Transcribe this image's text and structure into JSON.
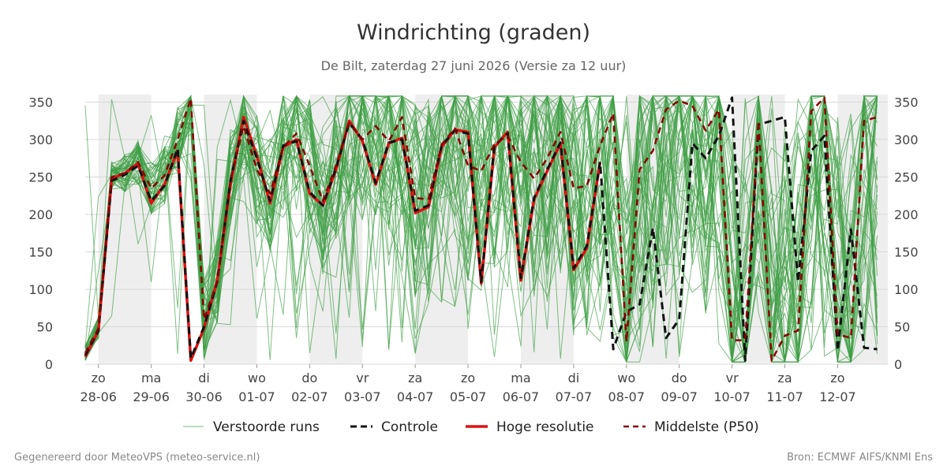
{
  "chart_data": {
    "type": "line",
    "title": "Windrichting (graden)",
    "subtitle": "De Bilt, zaterdag 27 juni 2026 (Versie za 12 uur)",
    "ylim": [
      0,
      360
    ],
    "yticks": [
      0,
      50,
      100,
      150,
      200,
      250,
      300,
      350
    ],
    "xlim": [
      -0.25,
      14.95
    ],
    "xticks": [
      {
        "day": "zo",
        "date": "28-06"
      },
      {
        "day": "ma",
        "date": "29-06"
      },
      {
        "day": "di",
        "date": "30-06"
      },
      {
        "day": "wo",
        "date": "01-07"
      },
      {
        "day": "do",
        "date": "02-07"
      },
      {
        "day": "vr",
        "date": "03-07"
      },
      {
        "day": "za",
        "date": "04-07"
      },
      {
        "day": "zo",
        "date": "05-07"
      },
      {
        "day": "ma",
        "date": "06-07"
      },
      {
        "day": "di",
        "date": "07-07"
      },
      {
        "day": "wo",
        "date": "08-07"
      },
      {
        "day": "do",
        "date": "09-07"
      },
      {
        "day": "vr",
        "date": "10-07"
      },
      {
        "day": "za",
        "date": "11-07"
      },
      {
        "day": "zo",
        "date": "12-07"
      }
    ],
    "shaded_days": [
      0,
      2,
      4,
      6,
      8,
      10,
      12,
      14
    ],
    "grid": true,
    "legend": [
      {
        "key": "ensemble",
        "label": "Verstoorde runs"
      },
      {
        "key": "control",
        "label": "Controle"
      },
      {
        "key": "hires",
        "label": "Hoge resolutie"
      },
      {
        "key": "median",
        "label": "Middelste (P50)"
      }
    ],
    "legend_position": "bottom",
    "ensemble_members": 50,
    "series": [
      {
        "key": "hires",
        "x": [
          -0.25,
          0,
          0.25,
          0.5,
          0.75,
          1,
          1.25,
          1.5,
          1.75,
          2,
          2.25,
          2.5,
          2.75,
          3,
          3.25,
          3.5,
          3.75,
          4,
          4.25,
          4.5,
          4.75,
          5,
          5.25,
          5.5,
          5.75,
          6,
          6.25,
          6.5,
          6.75,
          7,
          7.25,
          7.5,
          7.75,
          8,
          8.25,
          8.5,
          8.75,
          9,
          9.25,
          9.5
        ],
        "values": [
          10,
          45,
          248,
          255,
          268,
          215,
          240,
          285,
          5,
          48,
          112,
          240,
          330,
          278,
          215,
          290,
          300,
          228,
          212,
          260,
          325,
          298,
          240,
          295,
          302,
          202,
          210,
          290,
          313,
          310,
          108,
          290,
          310,
          112,
          220,
          258,
          295,
          126,
          155,
          270
        ]
      },
      {
        "key": "control",
        "x": [
          -0.25,
          0,
          0.25,
          0.5,
          0.75,
          1,
          1.25,
          1.5,
          1.75,
          2,
          2.25,
          2.5,
          2.75,
          3,
          3.25,
          3.5,
          3.75,
          4,
          4.25,
          4.5,
          4.75,
          5,
          5.25,
          5.5,
          5.75,
          6,
          6.25,
          6.5,
          6.75,
          7,
          7.25,
          7.5,
          7.75,
          8,
          8.25,
          8.5,
          8.75,
          9,
          9.25,
          9.5,
          9.75,
          10,
          10.25,
          10.5,
          10.75,
          11,
          11.25,
          11.5,
          11.75,
          12,
          12.25,
          12.5,
          12.75,
          13,
          13.25,
          13.5,
          13.75,
          14,
          14.25,
          14.5,
          14.75
        ],
        "values": [
          12,
          45,
          245,
          253,
          265,
          218,
          238,
          288,
          8,
          50,
          110,
          245,
          325,
          275,
          218,
          292,
          298,
          230,
          212,
          262,
          322,
          300,
          242,
          296,
          300,
          205,
          212,
          292,
          312,
          308,
          110,
          292,
          308,
          115,
          222,
          260,
          296,
          128,
          158,
          270,
          20,
          70,
          80,
          182,
          35,
          60,
          295,
          275,
          305,
          356,
          5,
          320,
          325,
          330,
          110,
          285,
          305,
          18,
          180,
          22,
          20
        ]
      },
      {
        "key": "median",
        "x": [
          -0.25,
          0,
          0.25,
          0.5,
          0.75,
          1,
          1.25,
          1.5,
          1.75,
          2,
          2.25,
          2.5,
          2.75,
          3,
          3.25,
          3.5,
          3.75,
          4,
          4.25,
          4.5,
          4.75,
          5,
          5.25,
          5.5,
          5.75,
          6,
          6.25,
          6.5,
          6.75,
          7,
          7.25,
          7.5,
          7.75,
          8,
          8.25,
          8.5,
          8.75,
          9,
          9.25,
          9.5,
          9.75,
          10,
          10.25,
          10.5,
          10.75,
          11,
          11.25,
          11.5,
          11.75,
          12,
          12.25,
          12.5,
          12.75,
          13,
          13.25,
          13.5,
          13.75,
          14,
          14.25,
          14.5,
          14.75
        ],
        "values": [
          15,
          48,
          250,
          255,
          270,
          235,
          252,
          300,
          355,
          60,
          110,
          245,
          318,
          260,
          228,
          290,
          308,
          265,
          218,
          265,
          322,
          300,
          318,
          298,
          330,
          222,
          220,
          293,
          315,
          265,
          258,
          294,
          305,
          270,
          248,
          275,
          310,
          235,
          238,
          292,
          335,
          30,
          260,
          285,
          340,
          352,
          345,
          312,
          340,
          32,
          32,
          325,
          5,
          38,
          45,
          338,
          356,
          40,
          35,
          325,
          330
        ]
      }
    ]
  },
  "footer": {
    "left": "Gegenereerd door MeteoVPS (meteo-service.nl)",
    "right": "Bron: ECMWF AIFS/KNMI Ens"
  }
}
